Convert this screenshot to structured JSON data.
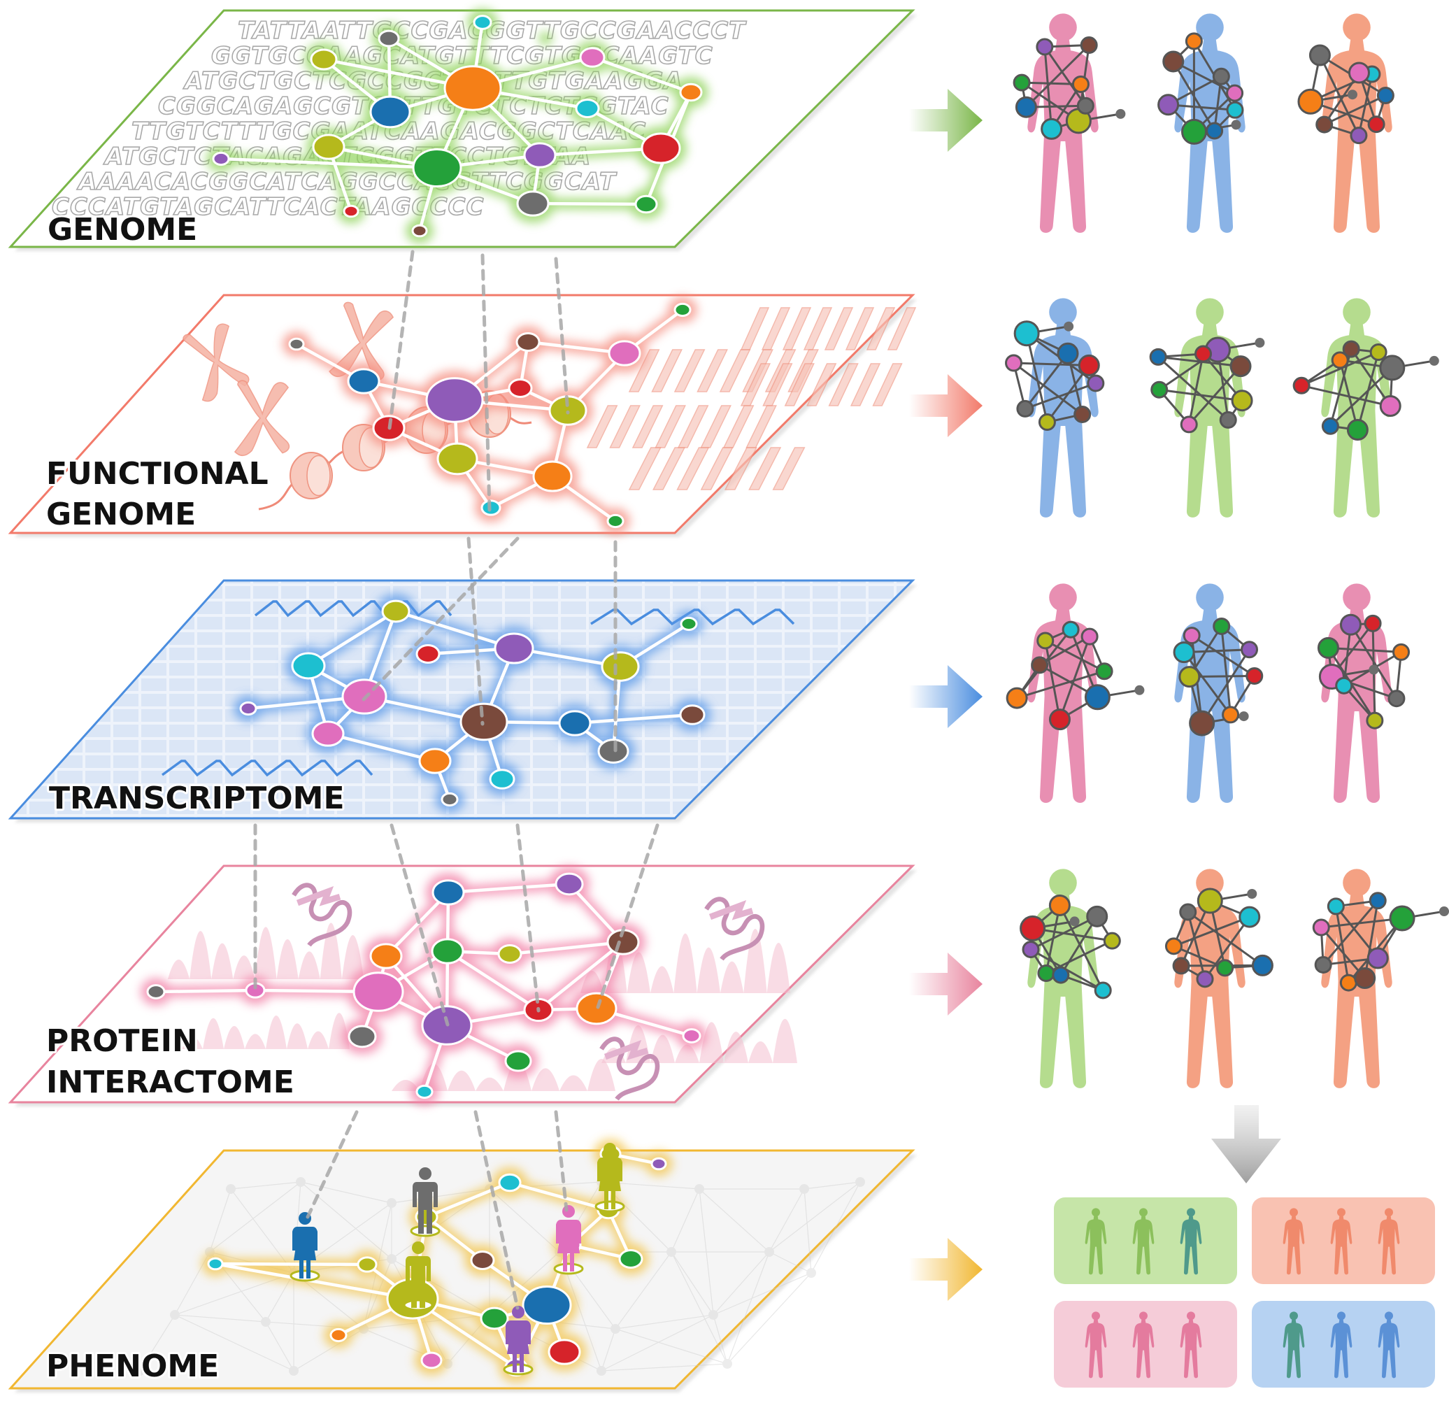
{
  "layers": [
    {
      "id": "genome",
      "label_lines": [
        "GENOME"
      ],
      "color": "#7ab648"
    },
    {
      "id": "functional-genome",
      "label_lines": [
        "FUNCTIONAL",
        "GENOME"
      ],
      "color": "#f27a6a"
    },
    {
      "id": "transcriptome",
      "label_lines": [
        "TRANSCRIPTOME"
      ],
      "color": "#4a8ddf"
    },
    {
      "id": "protein-interactome",
      "label_lines": [
        "PROTEIN",
        "INTERACTOME"
      ],
      "color": "#e8849e"
    },
    {
      "id": "phenome",
      "label_lines": [
        "PHENOME"
      ],
      "color": "#f1b731"
    }
  ],
  "genome_sequence_lines": [
    "TATTAATTGCCGACGGTTGCCGAACCCT",
    "GGTGCCAAGCATGTTTCGTGGCAAGTC",
    "ATGCTGCTCGCCGCTCATTGTGAAGGA",
    "CGGCAGAGCGTCATTGTCTCTCTCGTAC",
    "TTGTCTTTGCGAATCAAGACGGCTCAAC",
    "ATGCTCTACAGACTCGGTTCCTCTTAA",
    "AAAACACGGCATCAGGCCACGTTCGGCAT",
    "CCCATGTAGCATTCACTAAGCCCC"
  ],
  "node_colors": {
    "orange": "#f57f17",
    "blue": "#1a6faf",
    "green": "#24a13a",
    "red": "#d6232a",
    "purple": "#8f5bb8",
    "olive": "#b5b91c",
    "cyan": "#1dbfd0",
    "pink": "#e06ebd",
    "grey": "#6d6d6d",
    "brown": "#7a4a3c"
  },
  "body_colors": {
    "pink": "#e88fb2",
    "blue": "#8ab3e6",
    "salmon": "#f4a183",
    "green": "#b5dc8e",
    "teal": "#4f9a8b"
  },
  "icons": [
    "right-arrow-icon",
    "down-arrow-icon",
    "person-icon",
    "human-body-icon",
    "chromosome-icon",
    "dna-helix-icon",
    "protein-ribbon-icon"
  ]
}
